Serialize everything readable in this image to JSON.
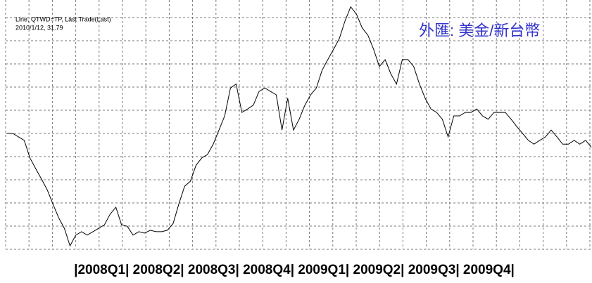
{
  "chart_data": {
    "type": "line",
    "title": "外匯: 美金/新台幣",
    "annotations": [
      "Line, QTWD=TP, Last Trade(Last)",
      "2010/1/12, 31.79"
    ],
    "x_label": "|2008Q1| 2008Q2| 2008Q3| 2008Q4| 2009Q1| 2009Q2| 2009Q3| 2009Q4|",
    "color": "#000000",
    "grid": true,
    "ylim": [
      29.7,
      34.8
    ],
    "values": [
      32.07,
      32.07,
      32.0,
      31.93,
      31.57,
      31.35,
      31.14,
      30.92,
      30.63,
      30.35,
      30.13,
      29.77,
      29.99,
      30.06,
      29.99,
      30.06,
      30.13,
      30.2,
      30.42,
      30.56,
      30.2,
      30.17,
      29.99,
      30.06,
      30.03,
      30.09,
      30.06,
      30.06,
      30.09,
      30.23,
      30.63,
      30.99,
      31.09,
      31.42,
      31.57,
      31.64,
      31.85,
      32.14,
      32.43,
      33.0,
      33.08,
      32.5,
      32.57,
      32.65,
      32.93,
      33.0,
      32.93,
      32.86,
      32.14,
      32.79,
      32.14,
      32.36,
      32.65,
      32.86,
      33.0,
      33.36,
      33.58,
      33.79,
      34.01,
      34.37,
      34.66,
      34.51,
      34.23,
      34.08,
      33.79,
      33.44,
      33.58,
      33.29,
      33.08,
      33.58,
      33.58,
      33.44,
      33.08,
      32.79,
      32.57,
      32.5,
      32.36,
      32.0,
      32.43,
      32.43,
      32.5,
      32.5,
      32.57,
      32.43,
      32.36,
      32.5,
      32.5,
      32.5,
      32.36,
      32.21,
      32.07,
      31.93,
      31.85,
      31.93,
      32.0,
      32.14,
      32.0,
      31.85,
      31.85,
      31.93,
      31.85,
      31.93,
      31.79
    ]
  }
}
